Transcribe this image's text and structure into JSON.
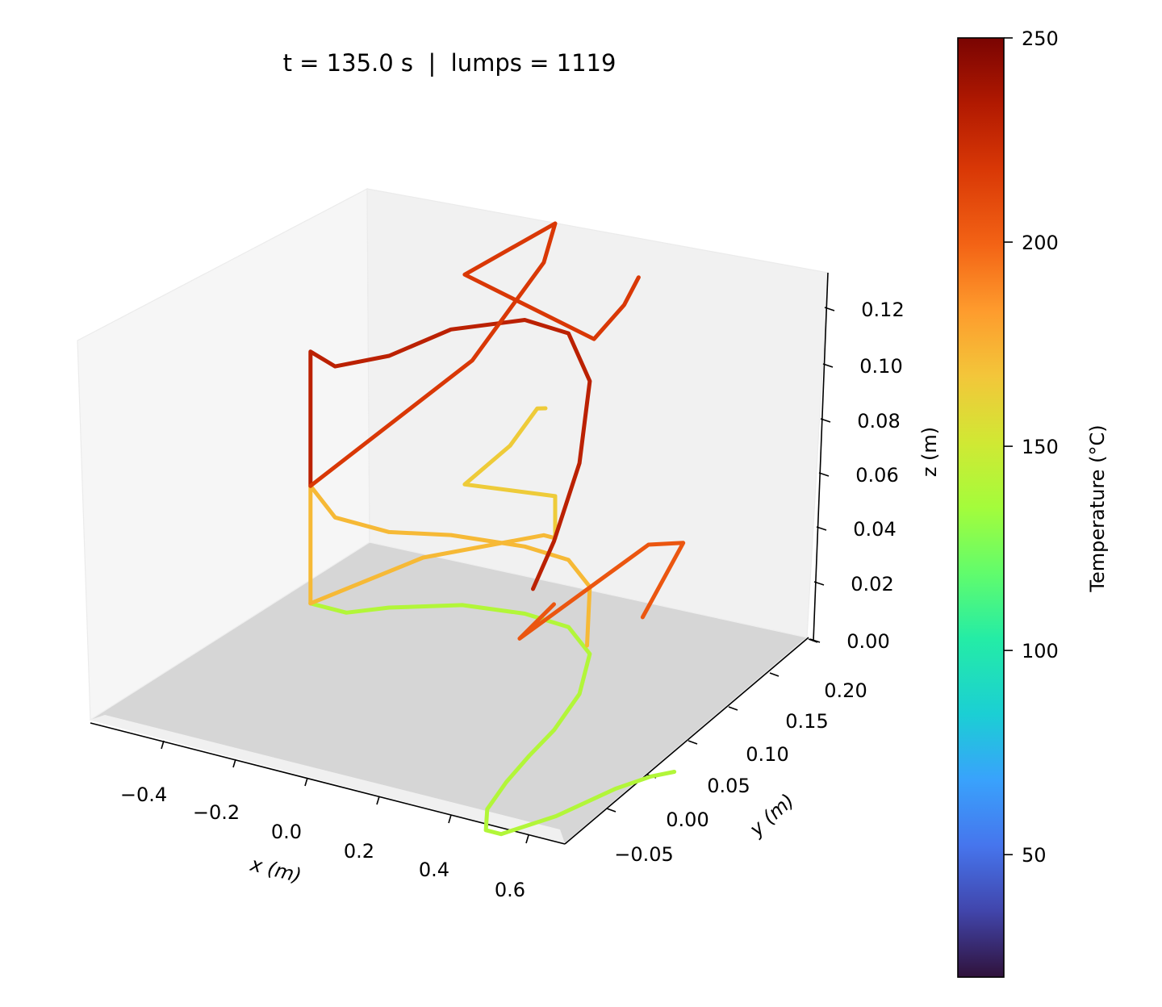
{
  "chart_data": {
    "type": "line3d",
    "title": "t = 135.0 s  |  lumps = 1119",
    "xlabel": "x (m)",
    "ylabel": "y (m)",
    "zlabel": "z (m)",
    "x_ticks": [
      "−0.4",
      "−0.2",
      "0.0",
      "0.2",
      "0.4",
      "0.6"
    ],
    "y_ticks": [
      "−0.05",
      "0.00",
      "0.05",
      "0.10",
      "0.15",
      "0.20"
    ],
    "z_ticks": [
      "0.00",
      "0.02",
      "0.04",
      "0.06",
      "0.08",
      "0.10",
      "0.12"
    ],
    "xlim": [
      -0.5,
      0.66
    ],
    "ylim": [
      -0.08,
      0.22
    ],
    "zlim": [
      0.0,
      0.13
    ],
    "colorbar": {
      "label": "Temperature (°C)",
      "range": [
        20,
        250
      ],
      "ticks": [
        "50",
        "100",
        "150",
        "200",
        "250"
      ],
      "colormap": "turbo"
    },
    "series": [
      {
        "temperature": 140,
        "points": [
          [
            -0.475,
            0.12,
            0
          ],
          [
            -0.44,
            0.12,
            0
          ],
          [
            -0.38,
            0.12,
            0
          ],
          [
            -0.3,
            0.135,
            0
          ],
          [
            -0.15,
            0.155,
            0
          ],
          [
            0.0,
            0.162,
            0
          ],
          [
            0.12,
            0.16,
            0
          ],
          [
            0.22,
            0.14,
            0
          ],
          [
            0.28,
            0.1,
            0
          ],
          [
            0.3,
            0.06,
            0
          ],
          [
            0.3,
            0.03,
            0
          ],
          [
            0.305,
            0.0,
            0
          ],
          [
            0.32,
            -0.03,
            0
          ],
          [
            0.36,
            -0.05,
            0
          ],
          [
            0.4,
            -0.05,
            0
          ],
          [
            0.48,
            -0.02,
            0
          ],
          [
            0.55,
            0.02,
            0
          ],
          [
            0.6,
            0.04,
            0
          ],
          [
            0.64,
            0.05,
            0
          ]
        ]
      },
      {
        "temperature": 172,
        "points": [
          [
            -0.475,
            0.12,
            0
          ],
          [
            -0.475,
            0.12,
            0.028
          ],
          [
            -0.41,
            0.12,
            0.022
          ],
          [
            -0.3,
            0.135,
            0.018
          ],
          [
            -0.18,
            0.155,
            0.016
          ],
          [
            0.0,
            0.162,
            0.016
          ],
          [
            0.12,
            0.16,
            0.016
          ],
          [
            0.22,
            0.14,
            0.016
          ],
          [
            0.3,
            0.1,
            0.012
          ]
        ]
      },
      {
        "temperature": 172,
        "points": [
          [
            -0.475,
            0.12,
            0.0
          ],
          [
            -0.33,
            0.19,
            0.0
          ],
          [
            -0.12,
            0.24,
            0.0
          ],
          [
            -0.09,
            0.24,
            0.0
          ]
        ]
      },
      {
        "temperature": 165,
        "points": [
          [
            -0.09,
            0.24,
            0.0
          ],
          [
            -0.09,
            0.24,
            0.01
          ],
          [
            -0.22,
            0.19,
            0.02
          ],
          [
            -0.1,
            0.19,
            0.032
          ],
          [
            -0.05,
            0.2,
            0.04
          ],
          [
            -0.05,
            0.21,
            0.038
          ]
        ]
      },
      {
        "temperature": 230,
        "points": [
          [
            -0.475,
            0.12,
            0.028
          ],
          [
            -0.475,
            0.12,
            0.06
          ],
          [
            -0.41,
            0.12,
            0.058
          ],
          [
            -0.3,
            0.135,
            0.06
          ],
          [
            -0.18,
            0.155,
            0.065
          ],
          [
            0.0,
            0.162,
            0.07
          ],
          [
            0.12,
            0.16,
            0.07
          ],
          [
            0.22,
            0.14,
            0.065
          ],
          [
            0.28,
            0.1,
            0.055
          ],
          [
            0.3,
            0.06,
            0.045
          ],
          [
            0.31,
            0.03,
            0.04
          ]
        ]
      },
      {
        "temperature": 218,
        "points": [
          [
            -0.475,
            0.12,
            0.028
          ],
          [
            -0.2,
            0.19,
            0.05
          ],
          [
            -0.12,
            0.24,
            0.065
          ],
          [
            -0.09,
            0.24,
            0.075
          ],
          [
            -0.22,
            0.19,
            0.07
          ],
          [
            0.1,
            0.2,
            0.06
          ],
          [
            0.18,
            0.2,
            0.07
          ],
          [
            0.24,
            0.19,
            0.08
          ]
        ]
      },
      {
        "temperature": 205,
        "points": [
          [
            0.3,
            0.06,
            0.03
          ],
          [
            0.34,
            0.0,
            0.035
          ],
          [
            0.55,
            0.06,
            0.05
          ],
          [
            0.62,
            0.07,
            0.05
          ],
          [
            0.6,
            0.03,
            0.04
          ]
        ]
      }
    ]
  }
}
